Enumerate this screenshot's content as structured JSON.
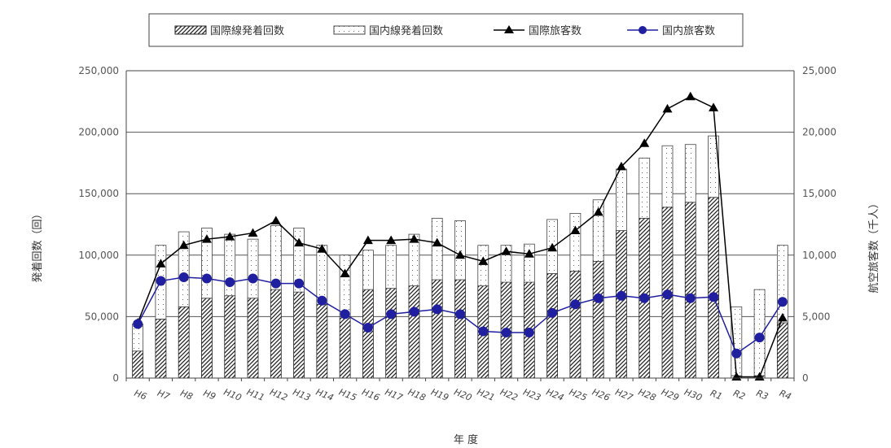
{
  "chart_data": {
    "type": "bar",
    "categories": [
      "H6",
      "H7",
      "H8",
      "H9",
      "H10",
      "H11",
      "H12",
      "H13",
      "H14",
      "H15",
      "H16",
      "H17",
      "H18",
      "H19",
      "H20",
      "H21",
      "H22",
      "H23",
      "H24",
      "H25",
      "H26",
      "H27",
      "H28",
      "H29",
      "H30",
      "R1",
      "R2",
      "R3",
      "R4"
    ],
    "xlabel": "年 度",
    "ylabel_left": "発着回数（回）",
    "ylabel_right": "航空旅客数（千人）",
    "ylim_left": [
      0,
      250000
    ],
    "ylim_right": [
      0,
      25000
    ],
    "yticks_left": [
      "0",
      "50,000",
      "100,000",
      "150,000",
      "200,000",
      "250,000"
    ],
    "yticks_right": [
      "0",
      "5,000",
      "10,000",
      "15,000",
      "20,000",
      "25,000"
    ],
    "grid": true,
    "legend_position": "top",
    "series": [
      {
        "name": "国際線発着回数",
        "kind": "bar",
        "axis": "left",
        "pattern": "diagonal-hatch",
        "values": [
          22000,
          48000,
          58000,
          65000,
          67000,
          65000,
          72000,
          70000,
          60000,
          50000,
          72000,
          73000,
          75000,
          80000,
          80000,
          75000,
          78000,
          78000,
          85000,
          87000,
          95000,
          120000,
          130000,
          139000,
          143000,
          147000,
          2000,
          2000,
          45000
        ]
      },
      {
        "name": "国内線発着回数",
        "kind": "bar",
        "axis": "left",
        "stacked": true,
        "pattern": "dotted",
        "values": [
          22000,
          60000,
          61000,
          57000,
          50000,
          48000,
          52000,
          52000,
          48000,
          50000,
          32000,
          35000,
          42000,
          50000,
          48000,
          33000,
          30000,
          31000,
          44000,
          47000,
          50000,
          50000,
          49000,
          50000,
          47000,
          50000,
          56000,
          70000,
          63000
        ]
      },
      {
        "name": "国際旅客数",
        "kind": "line",
        "axis": "right",
        "marker": "triangle",
        "color": "#000000",
        "values": [
          4500,
          9300,
          10800,
          11300,
          11500,
          11800,
          12800,
          11000,
          10500,
          8500,
          11200,
          11200,
          11300,
          11000,
          10000,
          9500,
          10300,
          10100,
          10600,
          12000,
          13500,
          17200,
          19100,
          21900,
          22900,
          22000,
          100,
          100,
          4900
        ]
      },
      {
        "name": "国内旅客数",
        "kind": "line",
        "axis": "right",
        "marker": "circle",
        "color": "#1f1fa0",
        "values": [
          4400,
          7900,
          8200,
          8100,
          7800,
          8100,
          7700,
          7700,
          6300,
          5200,
          4100,
          5200,
          5400,
          5600,
          5200,
          3800,
          3700,
          3700,
          5300,
          6000,
          6500,
          6700,
          6500,
          6800,
          6500,
          6600,
          2000,
          3300,
          6200
        ]
      }
    ]
  }
}
